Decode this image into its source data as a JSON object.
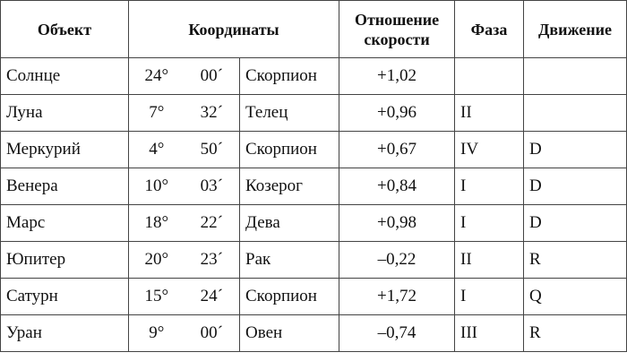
{
  "table": {
    "header": [
      "Объект",
      "Координаты",
      "Отношение скорости",
      "Фаза",
      "Движение"
    ],
    "rows": [
      [
        "Солнце",
        "24°",
        "00´",
        "Скорпион",
        "+1,02",
        null,
        null
      ],
      [
        "Луна",
        "7°",
        "32´",
        "Телец",
        "+0,96",
        "II",
        null
      ],
      [
        "Меркурий",
        "4°",
        "50´",
        "Скорпион",
        "+0,67",
        "IV",
        "D"
      ],
      [
        "Венера",
        "10°",
        "03´",
        "Козерог",
        "+0,84",
        "I",
        "D"
      ],
      [
        "Марс",
        "18°",
        "22´",
        "Дева",
        "+0,98",
        "I",
        "D"
      ],
      [
        "Юпитер",
        "20°",
        "23´",
        "Рак",
        "–0,22",
        "II",
        "R"
      ],
      [
        "Сатурн",
        "15°",
        "24´",
        "Скорпион",
        "+1,72",
        "I",
        "Q"
      ],
      [
        "Уран",
        "9°",
        "00´",
        "Овен",
        "–0,74",
        "III",
        "R"
      ]
    ]
  }
}
